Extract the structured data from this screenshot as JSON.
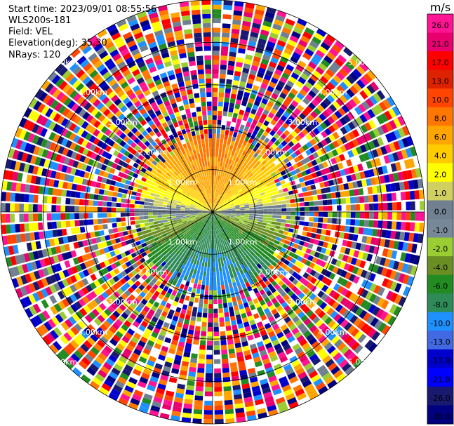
{
  "header": {
    "start_time": "Start time: 2023/09/01 08:55:56",
    "instrument": "WLS200s-181",
    "field": "Field: VEL",
    "elevation": "Elevation(deg): 35.30",
    "nrays": "NRays: 120"
  },
  "chart_data": {
    "type": "ppi",
    "title": "",
    "field": "VEL",
    "nrays": 120,
    "elevation_deg": 35.3,
    "range_rings_km": [
      1.0,
      2.0,
      3.0,
      4.0,
      5.0
    ],
    "range_ring_labels": [
      "1.00km",
      "2.00km",
      "3.00km",
      "4.00km",
      "5.00km"
    ],
    "max_range_km": 5.0,
    "valid_data_range_km": 2.2,
    "radial_velocity_pattern": {
      "description_values_ms": {
        "north_sector": 8.0,
        "south_sector": -10.0,
        "east_west_axis": 0.0
      },
      "max_abs_velocity_ms": 10.0
    },
    "colorbar": {
      "unit": "m/s",
      "ticks": [
        "26.0",
        "21.0",
        "17.0",
        "13.0",
        "10.0",
        "8.0",
        "6.0",
        "4.0",
        "2.0",
        "1.0",
        "0.0",
        "-1.0",
        "-2.0",
        "-4.0",
        "-6.0",
        "-8.0",
        "-10.0",
        "-13.0",
        "-17.0",
        "-21.0",
        "-26.0",
        "-30.0"
      ],
      "colors": [
        "#ff1493",
        "#e8006e",
        "#ff0000",
        "#dd2200",
        "#ff4500",
        "#ff7700",
        "#ffa500",
        "#ffcc00",
        "#ffff00",
        "#d0d060",
        "#708090",
        "#778899",
        "#9acd32",
        "#6b8e23",
        "#228b22",
        "#2e8b57",
        "#1e90ff",
        "#4169e1",
        "#0000cd",
        "#0000ff",
        "#191970",
        "#000080"
      ]
    }
  }
}
